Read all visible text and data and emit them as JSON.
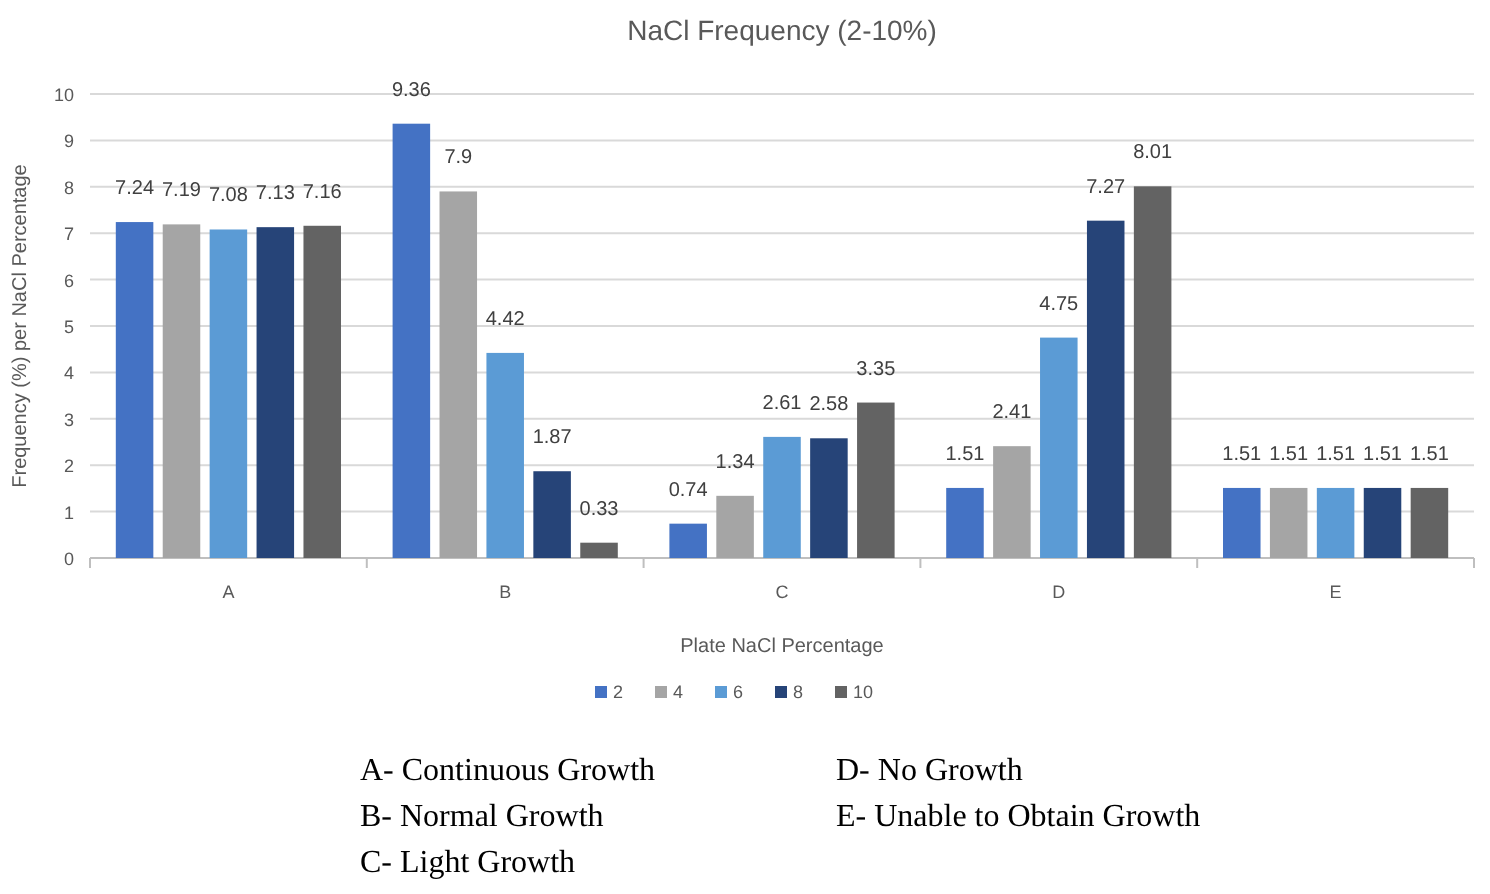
{
  "chart_data": {
    "type": "bar",
    "title": "NaCl Frequency (2-10%)",
    "xlabel": "Plate NaCl Percentage",
    "ylabel": "Frequency (%) per NaCl Percentage",
    "categories": [
      "A",
      "B",
      "C",
      "D",
      "E"
    ],
    "series": [
      {
        "name": "2",
        "color": "#4472c4",
        "values": [
          7.24,
          9.36,
          0.74,
          1.51,
          1.51
        ]
      },
      {
        "name": "4",
        "color": "#a5a5a5",
        "values": [
          7.19,
          7.9,
          1.34,
          2.41,
          1.51
        ]
      },
      {
        "name": "6",
        "color": "#5b9bd5",
        "values": [
          7.08,
          4.42,
          2.61,
          4.75,
          1.51
        ]
      },
      {
        "name": "8",
        "color": "#264478",
        "values": [
          7.13,
          1.87,
          2.58,
          7.27,
          1.51
        ]
      },
      {
        "name": "10",
        "color": "#636363",
        "values": [
          7.16,
          0.33,
          3.35,
          8.01,
          1.51
        ]
      }
    ],
    "ylim": [
      0,
      10
    ],
    "yticks": [
      0,
      1,
      2,
      3,
      4,
      5,
      6,
      7,
      8,
      9,
      10
    ],
    "grid": "y",
    "legend": "bottom",
    "data_labels": true,
    "annotations": [
      "A- Continuous Growth",
      "B- Normal Growth",
      "C- Light Growth",
      "D- No Growth",
      "E- Unable to Obtain Growth"
    ]
  }
}
